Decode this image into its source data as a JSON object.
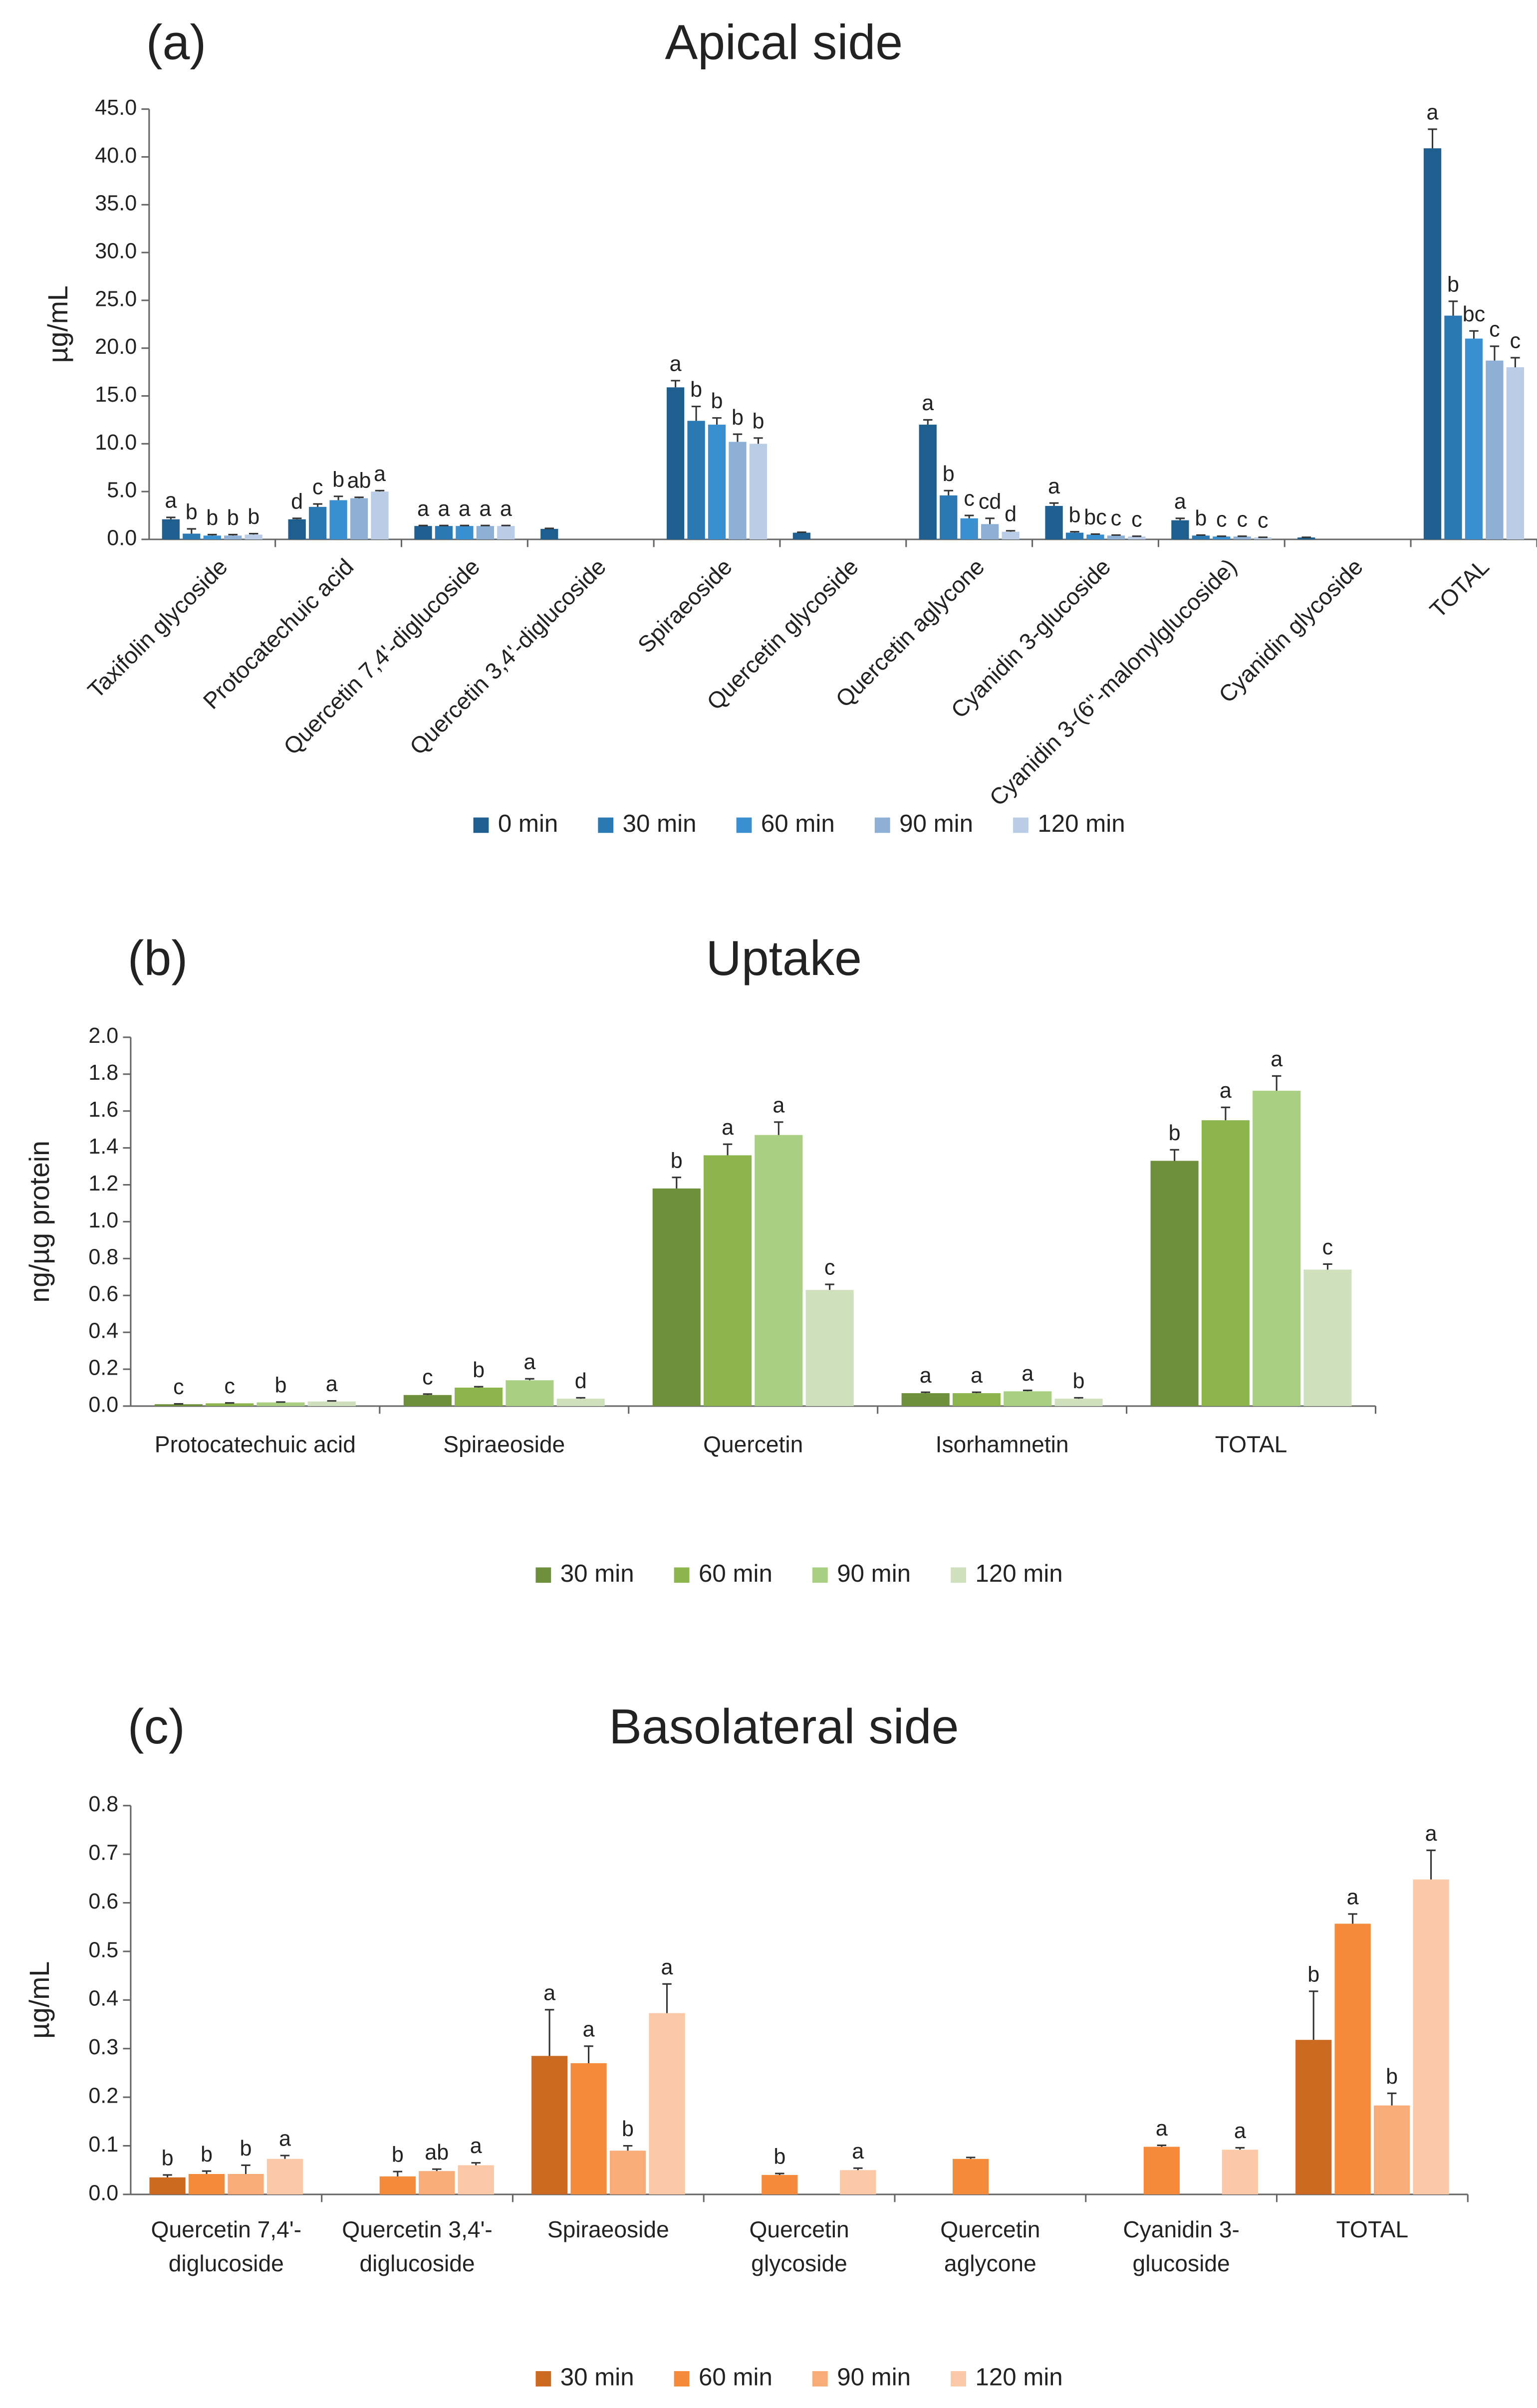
{
  "chart_data": [
    {
      "type": "bar",
      "panel": "(a)",
      "title": "Apical side",
      "y_label": "µg/mL",
      "categories": [
        "Taxifolin glycoside",
        "Protocatechuic acid",
        "Quercetin 7,4'-diglucoside",
        "Quercetin 3,4'-diglucoside",
        "Spiraeoside",
        "Quercetin glycoside",
        "Quercetin aglycone",
        "Cyanidin 3-glucoside",
        "Cyanidin 3-(6''-malonylglucoside)",
        "Cyanidin glycoside",
        "TOTAL"
      ],
      "series": [
        {
          "name": "0 min",
          "color": "#1f5f8f",
          "values": [
            2.1,
            2.1,
            1.4,
            1.1,
            15.9,
            0.7,
            12.0,
            3.5,
            2.0,
            0.2,
            40.9
          ],
          "errors": [
            0.2,
            0.1,
            0.05,
            0.05,
            0.7,
            0.05,
            0.5,
            0.3,
            0.2,
            0.02,
            2.0
          ],
          "letters": [
            "a",
            "d",
            "a",
            null,
            "a",
            null,
            "a",
            "a",
            "a",
            null,
            "a"
          ]
        },
        {
          "name": "30 min",
          "color": "#2a78b4",
          "values": [
            0.6,
            3.4,
            1.4,
            null,
            12.4,
            null,
            4.6,
            0.7,
            0.4,
            null,
            23.4
          ],
          "errors": [
            0.5,
            0.3,
            0.05,
            null,
            1.5,
            null,
            0.5,
            0.1,
            0.05,
            null,
            1.5
          ],
          "letters": [
            "b",
            "c",
            "a",
            null,
            "b",
            null,
            "b",
            "b",
            "b",
            null,
            "b"
          ]
        },
        {
          "name": "60 min",
          "color": "#3a8fd0",
          "values": [
            0.4,
            4.1,
            1.4,
            null,
            12.0,
            null,
            2.2,
            0.5,
            0.3,
            null,
            21.0
          ],
          "errors": [
            0.1,
            0.4,
            0.05,
            null,
            0.7,
            null,
            0.3,
            0.05,
            0.03,
            null,
            0.8
          ],
          "letters": [
            "b",
            "b",
            "a",
            null,
            "b",
            null,
            "c",
            "bc",
            "c",
            null,
            "bc"
          ]
        },
        {
          "name": "90 min",
          "color": "#8fb0d6",
          "values": [
            0.4,
            4.3,
            1.4,
            null,
            10.2,
            null,
            1.6,
            0.4,
            0.3,
            null,
            18.7
          ],
          "errors": [
            0.1,
            0.1,
            0.05,
            null,
            0.8,
            null,
            0.6,
            0.05,
            0.03,
            null,
            1.5
          ],
          "letters": [
            "b",
            "ab",
            "a",
            null,
            "b",
            null,
            "cd",
            "c",
            "c",
            null,
            "c"
          ]
        },
        {
          "name": "120 min",
          "color": "#b9cde6",
          "values": [
            0.5,
            5.0,
            1.4,
            null,
            10.0,
            null,
            0.8,
            0.3,
            0.2,
            null,
            18.0
          ],
          "errors": [
            0.1,
            0.1,
            0.05,
            null,
            0.6,
            null,
            0.1,
            0.03,
            0.02,
            null,
            1.0
          ],
          "letters": [
            "b",
            "a",
            "a",
            null,
            "b",
            null,
            "d",
            "c",
            "c",
            null,
            "c"
          ]
        }
      ],
      "ylim": [
        0,
        45
      ],
      "yticks": [
        {
          "value": 0,
          "label": "0.0"
        },
        {
          "value": 5,
          "label": "5.0"
        },
        {
          "value": 10,
          "label": "10.0"
        },
        {
          "value": 15,
          "label": "15.0"
        },
        {
          "value": 20,
          "label": "20.0"
        },
        {
          "value": 25,
          "label": "25.0"
        },
        {
          "value": 30,
          "label": "30.0"
        },
        {
          "value": 35,
          "label": "35.0"
        },
        {
          "value": 40,
          "label": "40.0"
        },
        {
          "value": 45,
          "label": "45.0"
        }
      ]
    },
    {
      "type": "bar",
      "panel": "(b)",
      "title": "Uptake",
      "y_label": "ng/µg protein",
      "categories": [
        "Protocatechuic acid",
        "Spiraeoside",
        "Quercetin",
        "Isorhamnetin",
        "TOTAL"
      ],
      "series": [
        {
          "name": "30 min",
          "color": "#6e8f3b",
          "values": [
            0.01,
            0.06,
            1.18,
            0.07,
            1.33
          ],
          "errors": [
            0.002,
            0.005,
            0.06,
            0.005,
            0.06
          ],
          "letters": [
            "c",
            "c",
            "b",
            "a",
            "b"
          ]
        },
        {
          "name": "60 min",
          "color": "#8db54d",
          "values": [
            0.015,
            0.1,
            1.36,
            0.07,
            1.55
          ],
          "errors": [
            0.002,
            0.005,
            0.06,
            0.005,
            0.07
          ],
          "letters": [
            "c",
            "b",
            "a",
            "a",
            "a"
          ]
        },
        {
          "name": "90 min",
          "color": "#a9cf82",
          "values": [
            0.02,
            0.14,
            1.47,
            0.08,
            1.71
          ],
          "errors": [
            0.002,
            0.008,
            0.07,
            0.005,
            0.08
          ],
          "letters": [
            "b",
            "a",
            "a",
            "a",
            "a"
          ]
        },
        {
          "name": "120 min",
          "color": "#cfe0bd",
          "values": [
            0.025,
            0.04,
            0.63,
            0.04,
            0.74
          ],
          "errors": [
            0.003,
            0.005,
            0.03,
            0.005,
            0.03
          ],
          "letters": [
            "a",
            "d",
            "c",
            "b",
            "c"
          ]
        }
      ],
      "ylim": [
        0,
        2
      ],
      "yticks": [
        {
          "value": 0,
          "label": "0.0"
        },
        {
          "value": 0.2,
          "label": "0.2"
        },
        {
          "value": 0.4,
          "label": "0.4"
        },
        {
          "value": 0.6,
          "label": "0.6"
        },
        {
          "value": 0.8,
          "label": "0.8"
        },
        {
          "value": 1,
          "label": "1.0"
        },
        {
          "value": 1.2,
          "label": "1.2"
        },
        {
          "value": 1.4,
          "label": "1.4"
        },
        {
          "value": 1.6,
          "label": "1.6"
        },
        {
          "value": 1.8,
          "label": "1.8"
        },
        {
          "value": 2,
          "label": "2.0"
        }
      ]
    },
    {
      "type": "bar",
      "panel": "(c)",
      "title": "Basolateral side",
      "y_label": "µg/mL",
      "categories": [
        [
          "Quercetin 7,4'-",
          "diglucoside"
        ],
        [
          "Quercetin 3,4'-",
          "diglucoside"
        ],
        [
          "Spiraeoside"
        ],
        [
          "Quercetin",
          "glycoside"
        ],
        [
          "Quercetin",
          "aglycone"
        ],
        [
          "Cyanidin 3-",
          "glucoside"
        ],
        [
          "TOTAL"
        ]
      ],
      "series": [
        {
          "name": "30 min",
          "color": "#cc6a22",
          "values": [
            0.035,
            null,
            0.285,
            null,
            null,
            null,
            0.318
          ],
          "errors": [
            0.005,
            null,
            0.095,
            null,
            null,
            null,
            0.1
          ],
          "letters": [
            "b",
            null,
            "a",
            null,
            null,
            null,
            "b"
          ]
        },
        {
          "name": "60 min",
          "color": "#f58a3a",
          "values": [
            0.042,
            0.037,
            0.27,
            0.04,
            0.073,
            0.098,
            0.557
          ],
          "errors": [
            0.006,
            0.01,
            0.035,
            0.003,
            0.003,
            0.003,
            0.02
          ],
          "letters": [
            "b",
            "b",
            "a",
            "b",
            null,
            "a",
            "a"
          ]
        },
        {
          "name": "90 min",
          "color": "#f9ac78",
          "values": [
            0.042,
            0.048,
            0.09,
            null,
            null,
            null,
            0.183
          ],
          "errors": [
            0.018,
            0.004,
            0.01,
            null,
            null,
            null,
            0.025
          ],
          "letters": [
            "b",
            "ab",
            "b",
            null,
            null,
            null,
            "b"
          ]
        },
        {
          "name": "120 min",
          "color": "#fbc9a8",
          "values": [
            0.073,
            0.06,
            0.373,
            0.05,
            null,
            0.092,
            0.648
          ],
          "errors": [
            0.007,
            0.005,
            0.06,
            0.004,
            null,
            0.004,
            0.06
          ],
          "letters": [
            "a",
            "a",
            "a",
            "a",
            null,
            "a",
            "a"
          ]
        }
      ],
      "ylim": [
        0,
        0.8
      ],
      "yticks": [
        {
          "value": 0,
          "label": "0.0"
        },
        {
          "value": 0.1,
          "label": "0.1"
        },
        {
          "value": 0.2,
          "label": "0.2"
        },
        {
          "value": 0.3,
          "label": "0.3"
        },
        {
          "value": 0.4,
          "label": "0.4"
        },
        {
          "value": 0.5,
          "label": "0.5"
        },
        {
          "value": 0.6,
          "label": "0.6"
        },
        {
          "value": 0.7,
          "label": "0.7"
        },
        {
          "value": 0.8,
          "label": "0.8"
        }
      ]
    }
  ]
}
